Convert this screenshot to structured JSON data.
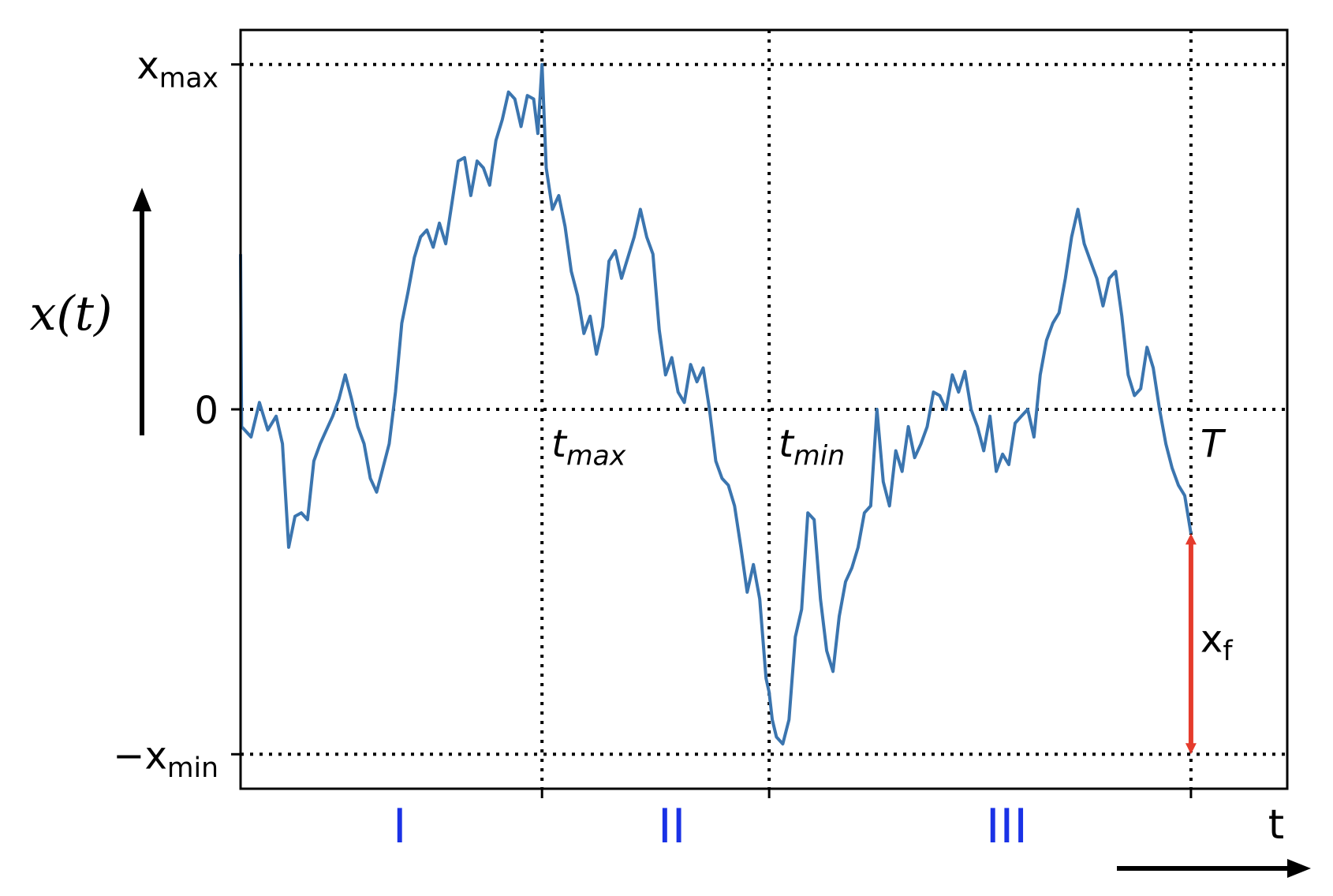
{
  "chart_data": {
    "type": "line",
    "title": "",
    "xlabel": "t",
    "ylabel": "x(t)",
    "xlim": [
      0,
      1
    ],
    "ylim": [
      -1.1,
      1.1
    ],
    "grid": false,
    "y_ticks": [
      {
        "value": 1,
        "label": "x",
        "sub": "max",
        "prefix": ""
      },
      {
        "value": 0,
        "label": "0",
        "sub": "",
        "prefix": ""
      },
      {
        "value": -1,
        "label": "x",
        "sub": "min",
        "prefix": "−"
      }
    ],
    "markers": [
      {
        "x": 0.288,
        "label": "t",
        "sub": "max"
      },
      {
        "x": 0.505,
        "label": "t",
        "sub": "min"
      },
      {
        "x": 0.908,
        "label": "T",
        "sub": ""
      }
    ],
    "regions": [
      {
        "x": 0.152,
        "label": "I"
      },
      {
        "x": 0.412,
        "label": "II"
      },
      {
        "x": 0.732,
        "label": "III"
      }
    ],
    "final_arrow": {
      "x": 0.908,
      "y_from": -1,
      "y_to": -0.36,
      "label": "x",
      "sub": "f"
    },
    "series": [
      {
        "color": "#3b75af",
        "points": [
          [
            0.0,
            0.45
          ],
          [
            0.001,
            -0.05
          ],
          [
            0.01,
            -0.08
          ],
          [
            0.018,
            0.02
          ],
          [
            0.026,
            -0.06
          ],
          [
            0.034,
            -0.02
          ],
          [
            0.04,
            -0.1
          ],
          [
            0.046,
            -0.4
          ],
          [
            0.052,
            -0.31
          ],
          [
            0.058,
            -0.3
          ],
          [
            0.064,
            -0.32
          ],
          [
            0.07,
            -0.15
          ],
          [
            0.076,
            -0.1
          ],
          [
            0.082,
            -0.06
          ],
          [
            0.088,
            -0.02
          ],
          [
            0.094,
            0.03
          ],
          [
            0.1,
            0.1
          ],
          [
            0.106,
            0.03
          ],
          [
            0.112,
            -0.05
          ],
          [
            0.118,
            -0.1
          ],
          [
            0.124,
            -0.2
          ],
          [
            0.13,
            -0.24
          ],
          [
            0.136,
            -0.17
          ],
          [
            0.142,
            -0.1
          ],
          [
            0.148,
            0.05
          ],
          [
            0.154,
            0.25
          ],
          [
            0.16,
            0.34
          ],
          [
            0.166,
            0.44
          ],
          [
            0.172,
            0.5
          ],
          [
            0.178,
            0.52
          ],
          [
            0.184,
            0.47
          ],
          [
            0.19,
            0.54
          ],
          [
            0.196,
            0.48
          ],
          [
            0.202,
            0.6
          ],
          [
            0.208,
            0.72
          ],
          [
            0.214,
            0.73
          ],
          [
            0.22,
            0.62
          ],
          [
            0.226,
            0.72
          ],
          [
            0.232,
            0.7
          ],
          [
            0.238,
            0.65
          ],
          [
            0.244,
            0.78
          ],
          [
            0.25,
            0.84
          ],
          [
            0.256,
            0.92
          ],
          [
            0.262,
            0.9
          ],
          [
            0.268,
            0.82
          ],
          [
            0.274,
            0.91
          ],
          [
            0.28,
            0.9
          ],
          [
            0.284,
            0.8
          ],
          [
            0.288,
            1.0
          ],
          [
            0.292,
            0.7
          ],
          [
            0.298,
            0.58
          ],
          [
            0.304,
            0.62
          ],
          [
            0.31,
            0.53
          ],
          [
            0.316,
            0.4
          ],
          [
            0.322,
            0.33
          ],
          [
            0.328,
            0.22
          ],
          [
            0.334,
            0.27
          ],
          [
            0.34,
            0.16
          ],
          [
            0.346,
            0.24
          ],
          [
            0.352,
            0.43
          ],
          [
            0.358,
            0.46
          ],
          [
            0.364,
            0.38
          ],
          [
            0.37,
            0.44
          ],
          [
            0.376,
            0.5
          ],
          [
            0.382,
            0.58
          ],
          [
            0.388,
            0.5
          ],
          [
            0.394,
            0.45
          ],
          [
            0.4,
            0.23
          ],
          [
            0.406,
            0.1
          ],
          [
            0.412,
            0.15
          ],
          [
            0.418,
            0.05
          ],
          [
            0.424,
            0.02
          ],
          [
            0.43,
            0.13
          ],
          [
            0.436,
            0.08
          ],
          [
            0.442,
            0.12
          ],
          [
            0.448,
            0.0
          ],
          [
            0.454,
            -0.15
          ],
          [
            0.46,
            -0.2
          ],
          [
            0.466,
            -0.22
          ],
          [
            0.472,
            -0.28
          ],
          [
            0.478,
            -0.4
          ],
          [
            0.484,
            -0.53
          ],
          [
            0.49,
            -0.45
          ],
          [
            0.496,
            -0.55
          ],
          [
            0.502,
            -0.78
          ],
          [
            0.505,
            -0.82
          ],
          [
            0.508,
            -0.9
          ],
          [
            0.512,
            -0.95
          ],
          [
            0.518,
            -0.97
          ],
          [
            0.524,
            -0.9
          ],
          [
            0.53,
            -0.66
          ],
          [
            0.536,
            -0.58
          ],
          [
            0.542,
            -0.3
          ],
          [
            0.548,
            -0.32
          ],
          [
            0.554,
            -0.55
          ],
          [
            0.56,
            -0.7
          ],
          [
            0.566,
            -0.76
          ],
          [
            0.572,
            -0.6
          ],
          [
            0.578,
            -0.5
          ],
          [
            0.584,
            -0.46
          ],
          [
            0.59,
            -0.4
          ],
          [
            0.596,
            -0.3
          ],
          [
            0.602,
            -0.28
          ],
          [
            0.608,
            0.0
          ],
          [
            0.614,
            -0.21
          ],
          [
            0.62,
            -0.28
          ],
          [
            0.626,
            -0.12
          ],
          [
            0.632,
            -0.18
          ],
          [
            0.638,
            -0.05
          ],
          [
            0.644,
            -0.14
          ],
          [
            0.65,
            -0.1
          ],
          [
            0.656,
            -0.05
          ],
          [
            0.662,
            0.05
          ],
          [
            0.668,
            0.04
          ],
          [
            0.674,
            0.0
          ],
          [
            0.68,
            0.1
          ],
          [
            0.686,
            0.05
          ],
          [
            0.692,
            0.11
          ],
          [
            0.698,
            0.0
          ],
          [
            0.704,
            -0.05
          ],
          [
            0.71,
            -0.12
          ],
          [
            0.716,
            -0.02
          ],
          [
            0.722,
            -0.18
          ],
          [
            0.728,
            -0.13
          ],
          [
            0.734,
            -0.16
          ],
          [
            0.74,
            -0.04
          ],
          [
            0.746,
            -0.02
          ],
          [
            0.752,
            0.0
          ],
          [
            0.758,
            -0.08
          ],
          [
            0.764,
            0.1
          ],
          [
            0.77,
            0.2
          ],
          [
            0.776,
            0.25
          ],
          [
            0.782,
            0.28
          ],
          [
            0.788,
            0.38
          ],
          [
            0.794,
            0.5
          ],
          [
            0.8,
            0.58
          ],
          [
            0.806,
            0.48
          ],
          [
            0.812,
            0.43
          ],
          [
            0.818,
            0.38
          ],
          [
            0.824,
            0.3
          ],
          [
            0.83,
            0.38
          ],
          [
            0.836,
            0.4
          ],
          [
            0.842,
            0.27
          ],
          [
            0.848,
            0.1
          ],
          [
            0.854,
            0.04
          ],
          [
            0.86,
            0.06
          ],
          [
            0.866,
            0.18
          ],
          [
            0.872,
            0.12
          ],
          [
            0.878,
            0.0
          ],
          [
            0.884,
            -0.1
          ],
          [
            0.89,
            -0.17
          ],
          [
            0.896,
            -0.22
          ],
          [
            0.902,
            -0.25
          ],
          [
            0.908,
            -0.36
          ]
        ]
      }
    ]
  }
}
